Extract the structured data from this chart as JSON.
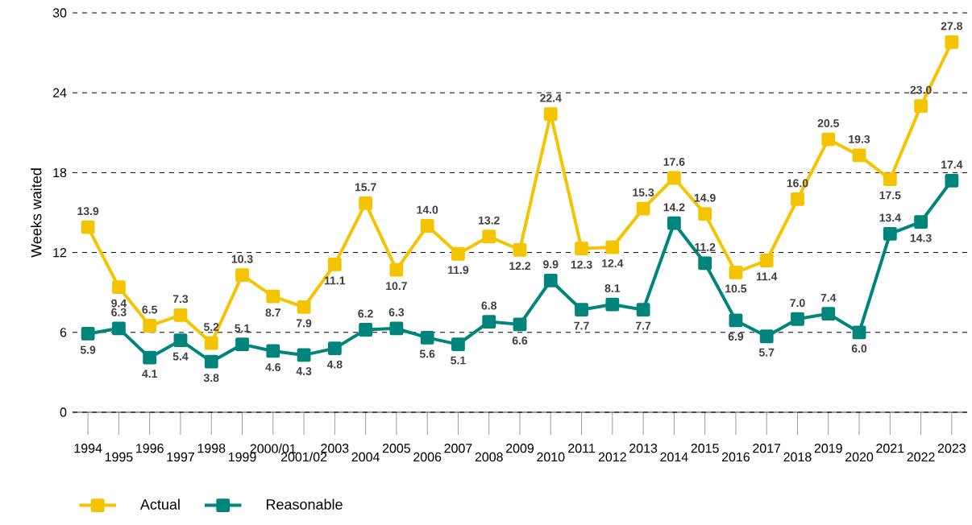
{
  "chart_data": {
    "type": "line",
    "ylabel": "Weeks waited",
    "categories": [
      "1994",
      "1995",
      "1996",
      "1997",
      "1998",
      "1999",
      "2000/01",
      "2001/02",
      "2003",
      "2004",
      "2005",
      "2006",
      "2007",
      "2008",
      "2009",
      "2010",
      "2011",
      "2012",
      "2013",
      "2014",
      "2015",
      "2016",
      "2017",
      "2018",
      "2019",
      "2020",
      "2021",
      "2022",
      "2023"
    ],
    "series": [
      {
        "name": "Actual",
        "color": "#f5c400",
        "values": [
          13.9,
          9.4,
          6.5,
          7.3,
          5.2,
          10.3,
          8.7,
          7.9,
          11.1,
          15.7,
          10.7,
          14.0,
          11.9,
          13.2,
          12.2,
          22.4,
          12.3,
          12.4,
          15.3,
          17.6,
          14.9,
          10.5,
          11.4,
          16.0,
          20.5,
          19.3,
          17.5,
          23.0,
          27.8
        ],
        "value_labels": [
          "13.9",
          "9.4",
          "6.5",
          "7.3",
          "5.2",
          "10.3",
          "8.7",
          "7.9",
          "11.1",
          "15.7",
          "10.7",
          "14.0",
          "11.9",
          "13.2",
          "12.2",
          "22.4",
          "12.3",
          "12.4",
          "15.3",
          "17.6",
          "14.9",
          "10.5",
          "11.4",
          "16.0",
          "20.5",
          "19.3",
          "17.5",
          "23.0",
          "27.8"
        ]
      },
      {
        "name": "Reasonable",
        "color": "#00857c",
        "values": [
          5.9,
          6.3,
          4.1,
          5.4,
          3.8,
          5.1,
          4.6,
          4.3,
          4.8,
          6.2,
          6.3,
          5.6,
          5.1,
          6.8,
          6.6,
          9.9,
          7.7,
          8.1,
          7.7,
          14.2,
          11.2,
          6.9,
          5.7,
          7.0,
          7.4,
          6.0,
          13.4,
          14.3,
          17.4
        ],
        "value_labels": [
          "5.9",
          "6.3",
          "4.1",
          "5.4",
          "3.8",
          "5.1",
          "4.6",
          "4.3",
          "4.8",
          "6.2",
          "6.3",
          "5.6",
          "5.1",
          "6.8",
          "6.6",
          "9.9",
          "7.7",
          "8.1",
          "7.7",
          "14.2",
          "11.2",
          "6.9",
          "5.7",
          "7.0",
          "7.4",
          "6.0",
          "13.4",
          "14.3",
          "17.4"
        ]
      }
    ],
    "ylim": [
      0,
      30
    ],
    "yticks": [
      0,
      6,
      12,
      18,
      24,
      30
    ],
    "grid": "y",
    "legend": "bottom left",
    "marker": "square",
    "line_style": "solid"
  }
}
